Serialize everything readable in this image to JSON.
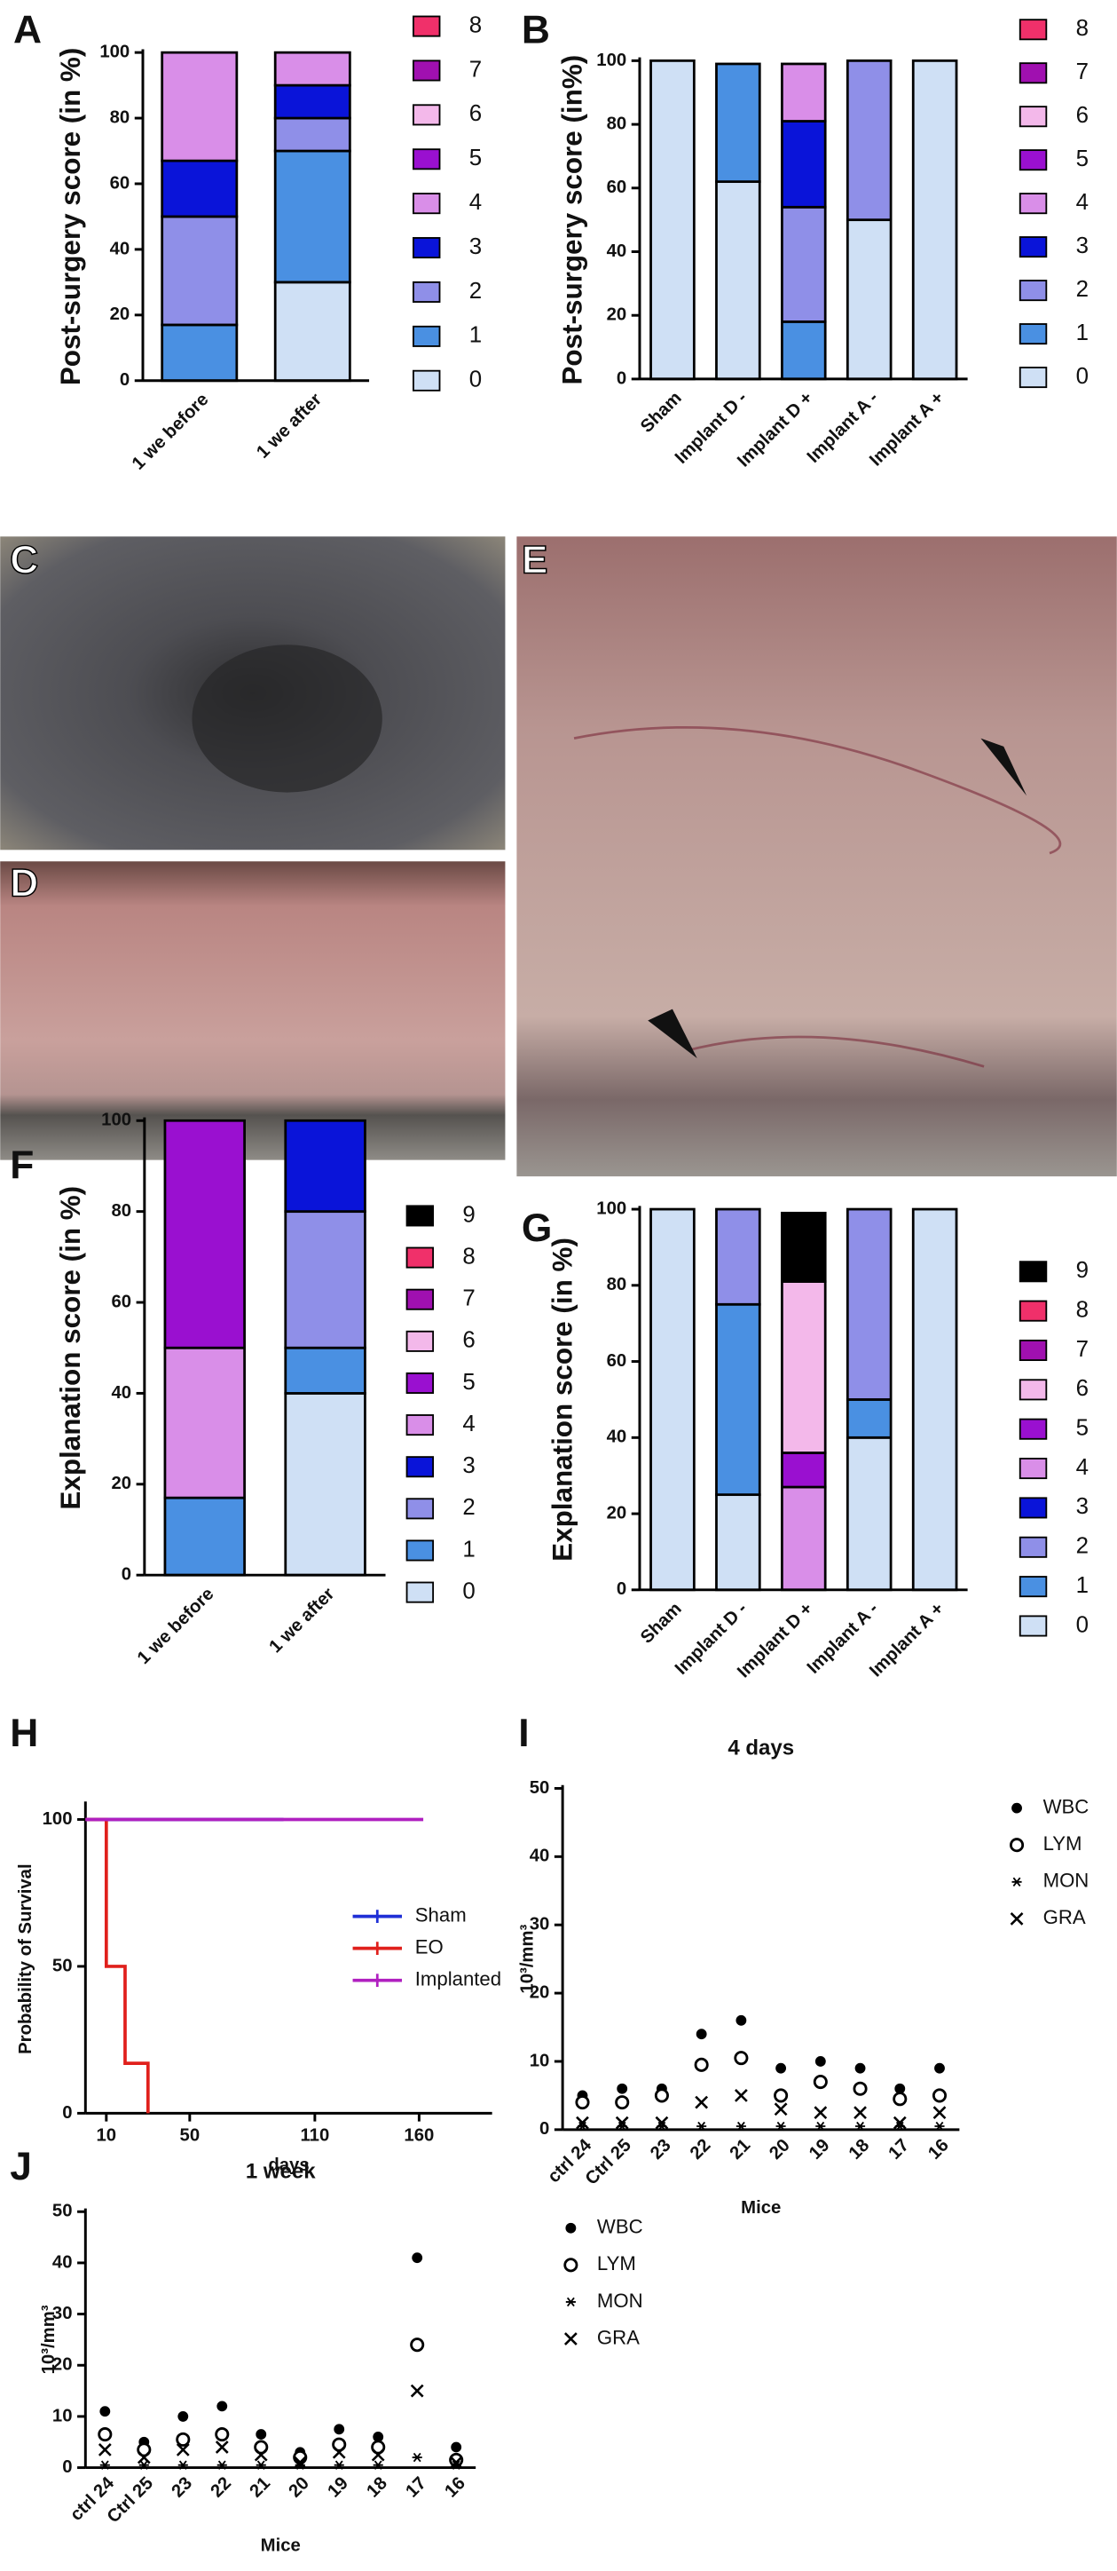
{
  "chart_data": [
    {
      "type": "bar",
      "stacked": true,
      "panel": "A",
      "ylabel": "Post-surgery score (in %)",
      "categories": [
        "1 we before",
        "1 we after"
      ],
      "ylim": [
        0,
        100
      ],
      "yticks": [
        0,
        20,
        40,
        60,
        80,
        100
      ],
      "series": [
        {
          "name": "0",
          "color": "#cfe0f5",
          "values": [
            0,
            30
          ]
        },
        {
          "name": "1",
          "color": "#4a90e2",
          "values": [
            17,
            40
          ]
        },
        {
          "name": "2",
          "color": "#8f8fe8",
          "values": [
            33,
            10
          ]
        },
        {
          "name": "3",
          "color": "#0a14d9",
          "values": [
            17,
            10
          ]
        },
        {
          "name": "4",
          "color": "#d98ee8",
          "values": [
            33,
            10
          ]
        },
        {
          "name": "5",
          "color": "#9a10d0",
          "values": [
            0,
            0
          ]
        },
        {
          "name": "6",
          "color": "#f3b8ea",
          "values": [
            0,
            0
          ]
        },
        {
          "name": "7",
          "color": "#a010b0",
          "values": [
            0,
            0
          ]
        },
        {
          "name": "8",
          "color": "#f0306a",
          "values": [
            0,
            0
          ]
        }
      ]
    },
    {
      "type": "bar",
      "stacked": true,
      "panel": "B",
      "ylabel": "Post-surgery score (in%)",
      "categories": [
        "Sham",
        "Implant D -",
        "Implant D +",
        "Implant A -",
        "Implant A +"
      ],
      "ylim": [
        0,
        100
      ],
      "yticks": [
        0,
        20,
        40,
        60,
        80,
        100
      ],
      "series": [
        {
          "name": "0",
          "color": "#cfe0f5",
          "values": [
            100,
            62,
            0,
            50,
            100
          ]
        },
        {
          "name": "1",
          "color": "#4a90e2",
          "values": [
            0,
            37,
            18,
            0,
            0
          ]
        },
        {
          "name": "2",
          "color": "#8f8fe8",
          "values": [
            0,
            0,
            36,
            50,
            0
          ]
        },
        {
          "name": "3",
          "color": "#0a14d9",
          "values": [
            0,
            0,
            27,
            0,
            0
          ]
        },
        {
          "name": "4",
          "color": "#d98ee8",
          "values": [
            0,
            0,
            18,
            0,
            0
          ]
        },
        {
          "name": "5",
          "color": "#9a10d0",
          "values": [
            0,
            0,
            0,
            0,
            0
          ]
        },
        {
          "name": "6",
          "color": "#f3b8ea",
          "values": [
            0,
            0,
            0,
            0,
            0
          ]
        },
        {
          "name": "7",
          "color": "#a010b0",
          "values": [
            0,
            0,
            0,
            0,
            0
          ]
        },
        {
          "name": "8",
          "color": "#f0306a",
          "values": [
            0,
            0,
            0,
            0,
            0
          ]
        }
      ]
    },
    {
      "type": "bar",
      "stacked": true,
      "panel": "F",
      "ylabel": "Explanation score (in %)",
      "categories": [
        "1 we before",
        "1 we after"
      ],
      "ylim": [
        0,
        100
      ],
      "yticks": [
        0,
        20,
        40,
        60,
        80,
        100
      ],
      "series": [
        {
          "name": "0",
          "color": "#cfe0f5",
          "values": [
            0,
            40
          ]
        },
        {
          "name": "1",
          "color": "#4a90e2",
          "values": [
            17,
            10
          ]
        },
        {
          "name": "2",
          "color": "#8f8fe8",
          "values": [
            0,
            30
          ]
        },
        {
          "name": "3",
          "color": "#0a14d9",
          "values": [
            0,
            20
          ]
        },
        {
          "name": "4",
          "color": "#d98ee8",
          "values": [
            33,
            0
          ]
        },
        {
          "name": "5",
          "color": "#9a10d0",
          "values": [
            50,
            0
          ]
        },
        {
          "name": "6",
          "color": "#f3b8ea",
          "values": [
            0,
            0
          ]
        },
        {
          "name": "7",
          "color": "#a010b0",
          "values": [
            0,
            0
          ]
        },
        {
          "name": "8",
          "color": "#f0306a",
          "values": [
            0,
            0
          ]
        },
        {
          "name": "9",
          "color": "#000000",
          "values": [
            0,
            0
          ]
        }
      ]
    },
    {
      "type": "bar",
      "stacked": true,
      "panel": "G",
      "ylabel": "Explanation score (in %)",
      "categories": [
        "Sham",
        "Implant D -",
        "Implant D +",
        "Implant A -",
        "Implant A +"
      ],
      "ylim": [
        0,
        100
      ],
      "yticks": [
        0,
        20,
        40,
        60,
        80,
        100
      ],
      "series": [
        {
          "name": "0",
          "color": "#cfe0f5",
          "values": [
            100,
            25,
            0,
            40,
            100
          ]
        },
        {
          "name": "1",
          "color": "#4a90e2",
          "values": [
            0,
            50,
            0,
            10,
            0
          ]
        },
        {
          "name": "2",
          "color": "#8f8fe8",
          "values": [
            0,
            25,
            0,
            50,
            0
          ]
        },
        {
          "name": "3",
          "color": "#0a14d9",
          "values": [
            0,
            0,
            0,
            0,
            0
          ]
        },
        {
          "name": "4",
          "color": "#d98ee8",
          "values": [
            0,
            0,
            27,
            0,
            0
          ]
        },
        {
          "name": "5",
          "color": "#9a10d0",
          "values": [
            0,
            0,
            9,
            0,
            0
          ]
        },
        {
          "name": "6",
          "color": "#f3b8ea",
          "values": [
            0,
            0,
            45,
            0,
            0
          ]
        },
        {
          "name": "7",
          "color": "#a010b0",
          "values": [
            0,
            0,
            0,
            0,
            0
          ]
        },
        {
          "name": "8",
          "color": "#f0306a",
          "values": [
            0,
            0,
            0,
            0,
            0
          ]
        },
        {
          "name": "9",
          "color": "#000000",
          "values": [
            0,
            0,
            18,
            0,
            0
          ]
        }
      ]
    },
    {
      "type": "line",
      "panel": "H",
      "xlabel": "days",
      "ylabel": "Probability of Survival",
      "xlim": [
        0,
        195
      ],
      "xticks": [
        10,
        50,
        110,
        160
      ],
      "ylim": [
        0,
        105
      ],
      "yticks": [
        0,
        50,
        100
      ],
      "series": [
        {
          "name": "Sham",
          "color": "#1f2fd6",
          "x": [
            0,
            95
          ],
          "y": [
            100,
            100
          ]
        },
        {
          "name": "EO",
          "color": "#e0201c",
          "x": [
            0,
            10,
            10,
            19,
            19,
            30,
            30
          ],
          "y": [
            100,
            100,
            50,
            50,
            17,
            17,
            0
          ]
        },
        {
          "name": "Implanted",
          "color": "#b020c0",
          "x": [
            0,
            162
          ],
          "y": [
            100,
            100
          ]
        }
      ]
    },
    {
      "type": "scatter",
      "panel": "I",
      "title": "4 days",
      "xlabel": "Mice",
      "ylabel": "10³/mm³",
      "categories": [
        "ctrl 24",
        "Ctrl 25",
        "23",
        "22",
        "21",
        "20",
        "19",
        "18",
        "17",
        "16"
      ],
      "ylim": [
        0,
        50
      ],
      "yticks": [
        0,
        10,
        20,
        30,
        40,
        50
      ],
      "series": [
        {
          "name": "WBC",
          "marker": "filled-circle",
          "color": "#000000",
          "values": [
            5,
            6,
            6,
            14,
            16,
            9,
            10,
            9,
            6,
            9
          ]
        },
        {
          "name": "LYM",
          "marker": "open-circle",
          "color": "#000000",
          "values": [
            4,
            4,
            5,
            9.5,
            10.5,
            5,
            7,
            6,
            4.5,
            5
          ]
        },
        {
          "name": "MON",
          "marker": "asterisk",
          "color": "#000000",
          "values": [
            0.5,
            0.5,
            0.5,
            0.5,
            0.5,
            0.5,
            0.5,
            0.5,
            0.5,
            0.5
          ]
        },
        {
          "name": "GRA",
          "marker": "x",
          "color": "#000000",
          "values": [
            1,
            1,
            1,
            4,
            5,
            3,
            2.5,
            2.5,
            1,
            2.5
          ]
        }
      ]
    },
    {
      "type": "scatter",
      "panel": "J",
      "title": "1 week",
      "xlabel": "Mice",
      "ylabel": "10³/mm³",
      "categories": [
        "ctrl 24",
        "Ctrl 25",
        "23",
        "22",
        "21",
        "20",
        "19",
        "18",
        "17",
        "16"
      ],
      "ylim": [
        0,
        50
      ],
      "yticks": [
        0,
        10,
        20,
        30,
        40,
        50
      ],
      "series": [
        {
          "name": "WBC",
          "marker": "filled-circle",
          "color": "#000000",
          "values": [
            11,
            5,
            10,
            12,
            6.5,
            3,
            7.5,
            6,
            41,
            4
          ]
        },
        {
          "name": "LYM",
          "marker": "open-circle",
          "color": "#000000",
          "values": [
            6.5,
            3.5,
            5.5,
            6.5,
            4,
            2,
            4.5,
            4,
            24,
            1.5
          ]
        },
        {
          "name": "MON",
          "marker": "asterisk",
          "color": "#000000",
          "values": [
            0.5,
            0.5,
            0.5,
            0.5,
            0.5,
            0.5,
            0.5,
            0.5,
            2,
            0.5
          ]
        },
        {
          "name": "GRA",
          "marker": "x",
          "color": "#000000",
          "values": [
            3.5,
            2,
            3.5,
            4,
            2.5,
            1,
            3,
            2.5,
            15,
            1
          ]
        }
      ]
    }
  ],
  "photos": [
    {
      "panel": "C"
    },
    {
      "panel": "D"
    },
    {
      "panel": "E"
    }
  ]
}
